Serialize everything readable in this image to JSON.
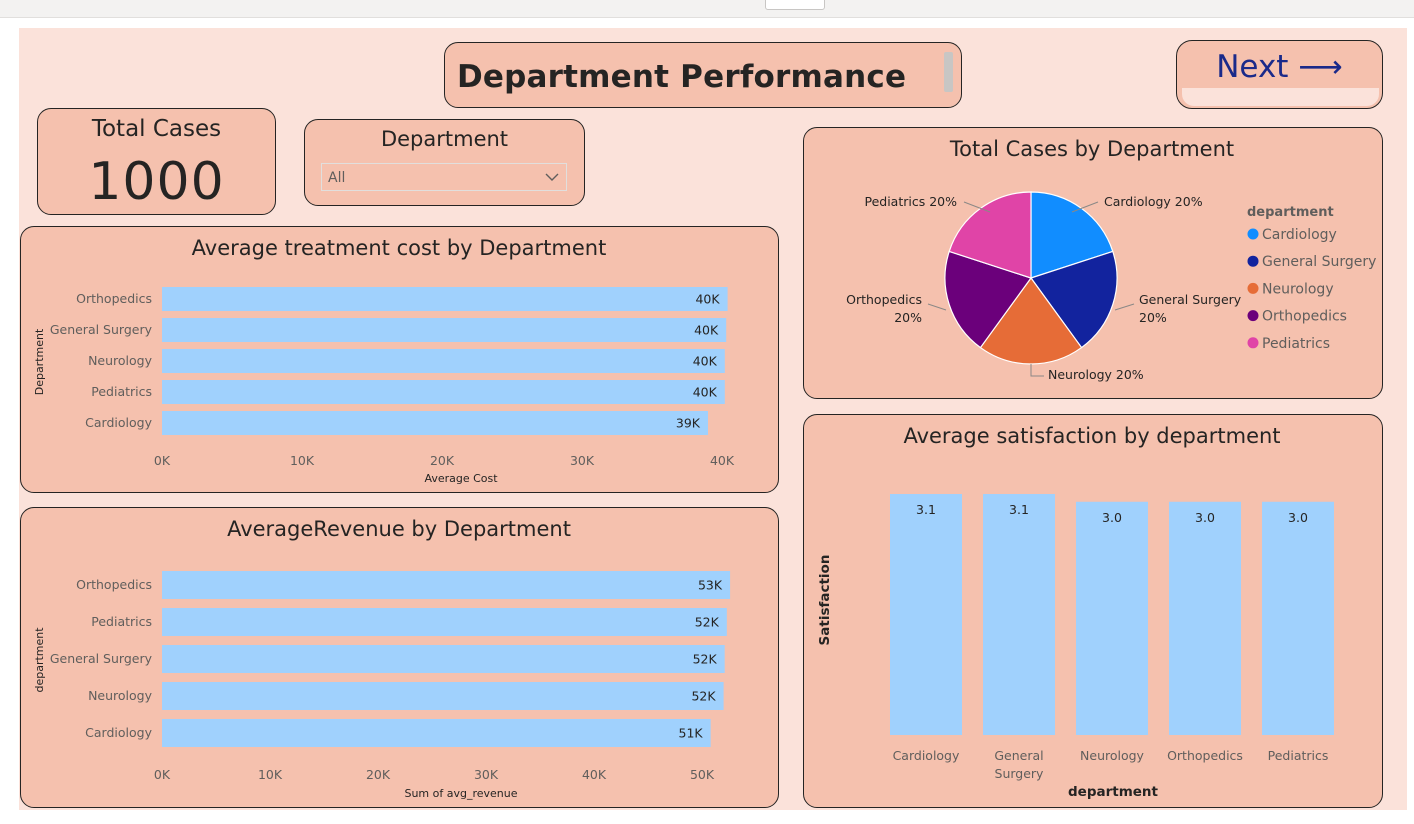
{
  "page_title": "Department Performance",
  "next_button": {
    "label": "Next ⟶"
  },
  "kpi": {
    "label": "Total Cases",
    "value": "1000"
  },
  "slicer": {
    "label": "Department",
    "selected": "All"
  },
  "colors": {
    "card_bg": "#f5c1ae",
    "canvas_bg": "#fbe2da",
    "bar": "#a0d1fd",
    "next_text": "#1a2a8a"
  },
  "chart_data": [
    {
      "id": "avg-cost",
      "type": "bar",
      "orientation": "horizontal",
      "title": "Average treatment cost by Department",
      "xlabel": "Average Cost",
      "ylabel": "Department",
      "categories": [
        "Orthopedics",
        "General Surgery",
        "Neurology",
        "Pediatrics",
        "Cardiology"
      ],
      "values": [
        40400,
        40300,
        40200,
        40200,
        39000
      ],
      "data_labels": [
        "40K",
        "40K",
        "40K",
        "40K",
        "39K"
      ],
      "xlim": [
        0,
        40000
      ],
      "x_ticks": [
        0,
        10000,
        20000,
        30000,
        40000
      ],
      "x_tick_labels": [
        "0K",
        "10K",
        "20K",
        "30K",
        "40K"
      ],
      "grid": false
    },
    {
      "id": "avg-revenue",
      "type": "bar",
      "orientation": "horizontal",
      "title": "AverageRevenue by Department",
      "xlabel": "Sum of avg_revenue",
      "ylabel": "department",
      "categories": [
        "Orthopedics",
        "Pediatrics",
        "General Surgery",
        "Neurology",
        "Cardiology"
      ],
      "values": [
        52600,
        52300,
        52100,
        52000,
        50800
      ],
      "data_labels": [
        "53K",
        "52K",
        "52K",
        "52K",
        "51K"
      ],
      "xlim": [
        0,
        50000
      ],
      "x_ticks": [
        0,
        10000,
        20000,
        30000,
        40000,
        50000
      ],
      "x_tick_labels": [
        "0K",
        "10K",
        "20K",
        "30K",
        "40K",
        "50K"
      ],
      "grid": false
    },
    {
      "id": "cases-pie",
      "type": "pie",
      "title": "Total Cases by Department",
      "legend_title": "department",
      "legend_position": "right",
      "slices": [
        {
          "name": "Cardiology",
          "value": 20,
          "label": "Cardiology 20%",
          "color": "#118dff"
        },
        {
          "name": "General Surgery",
          "value": 20,
          "label": "General Surgery 20%",
          "color": "#12239e"
        },
        {
          "name": "Neurology",
          "value": 20,
          "label": "Neurology 20%",
          "color": "#e66c37"
        },
        {
          "name": "Orthopedics",
          "value": 20,
          "label": "Orthopedics 20%",
          "color": "#6b007b"
        },
        {
          "name": "Pediatrics",
          "value": 20,
          "label": "Pediatrics 20%",
          "color": "#e044a7"
        }
      ]
    },
    {
      "id": "avg-satisfaction",
      "type": "bar",
      "orientation": "vertical",
      "title": "Average satisfaction by department",
      "xlabel": "department",
      "ylabel": "Satisfaction",
      "categories": [
        "Cardiology",
        "General Surgery",
        "Neurology",
        "Orthopedics",
        "Pediatrics"
      ],
      "values": [
        3.1,
        3.1,
        3.0,
        3.0,
        3.0
      ],
      "data_labels": [
        "3.1",
        "3.1",
        "3.0",
        "3.0",
        "3.0"
      ],
      "ylim": [
        0,
        3.1
      ],
      "grid": false
    }
  ]
}
